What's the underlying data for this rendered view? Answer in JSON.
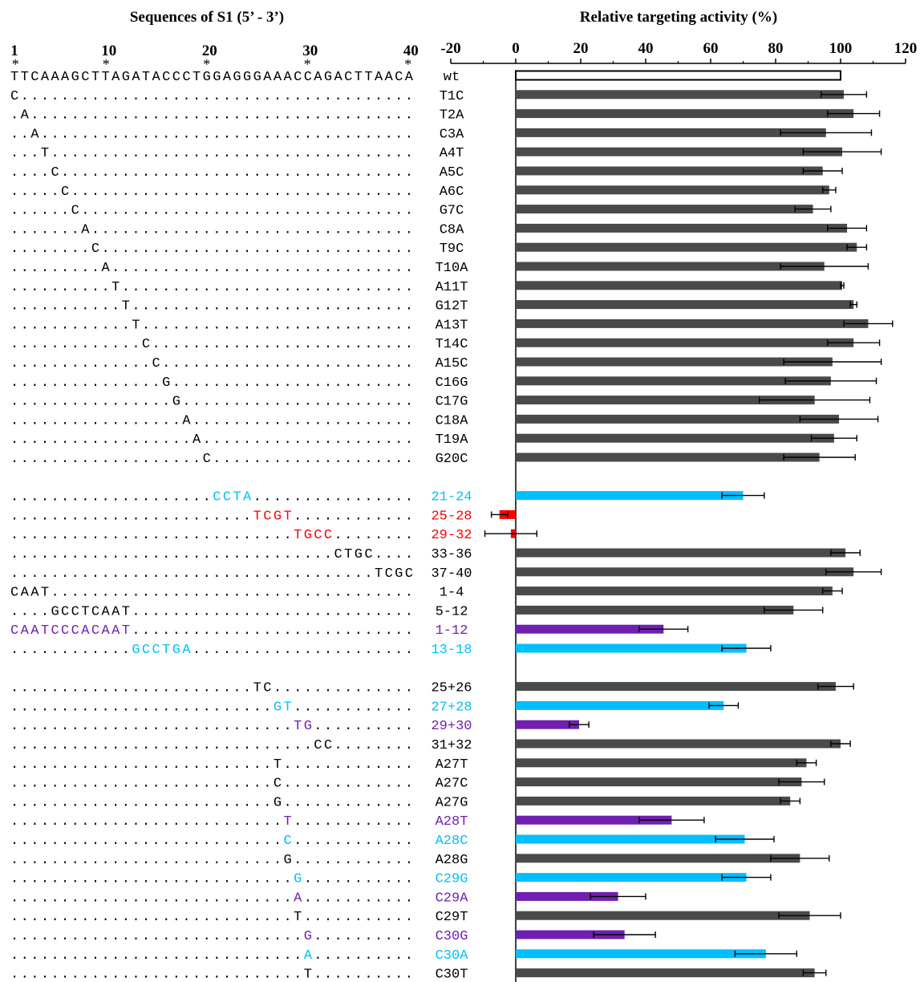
{
  "chart_data": {
    "type": "bar",
    "orientation": "horizontal",
    "left_title": "Sequences of S1 (5’ - 3’)",
    "title": "Relative targeting activity (%)",
    "position_labels": [
      "1",
      "10",
      "20",
      "30",
      "40"
    ],
    "position_stars": [
      "*",
      "*",
      "*",
      "*",
      "*"
    ],
    "xlim": [
      -20,
      120
    ],
    "xticks": [
      "-20",
      "0",
      "20",
      "40",
      "60",
      "80",
      "100",
      "120"
    ],
    "colors": {
      "gray": "#4a4a4a",
      "cyan": "#00bfff",
      "red": "#ff0000",
      "purple": "#7020b0",
      "black": "#000000",
      "wt_fill": "#ffffff"
    },
    "rows": [
      {
        "label": "wt",
        "seq": "TTCAAAGCTTAGATACCCTGGAGGGAAACCAGACTTAACA",
        "value": 100,
        "err": 0,
        "color": "wt_fill",
        "text_color": "black"
      },
      {
        "label": "T1C",
        "seq": "C.......................................",
        "value": 101,
        "err": 7,
        "color": "gray",
        "text_color": "black"
      },
      {
        "label": "T2A",
        "seq": ".A......................................",
        "value": 104,
        "err": 8,
        "color": "gray",
        "text_color": "black"
      },
      {
        "label": "C3A",
        "seq": "..A.....................................",
        "value": 95.5,
        "err": 14,
        "color": "gray",
        "text_color": "black"
      },
      {
        "label": "A4T",
        "seq": "...T....................................",
        "value": 100.5,
        "err": 12,
        "color": "gray",
        "text_color": "black"
      },
      {
        "label": "A5C",
        "seq": "....C...................................",
        "value": 94.5,
        "err": 6,
        "color": "gray",
        "text_color": "black"
      },
      {
        "label": "A6C",
        "seq": ".....C..................................",
        "value": 96.5,
        "err": 2,
        "color": "gray",
        "text_color": "black"
      },
      {
        "label": "G7C",
        "seq": "......C.................................",
        "value": 91.5,
        "err": 5.5,
        "color": "gray",
        "text_color": "black"
      },
      {
        "label": "C8A",
        "seq": ".......A................................",
        "value": 102,
        "err": 6,
        "color": "gray",
        "text_color": "black"
      },
      {
        "label": "T9C",
        "seq": "........C...............................",
        "value": 105,
        "err": 3,
        "color": "gray",
        "text_color": "black"
      },
      {
        "label": "T10A",
        "seq": ".........A..............................",
        "value": 95,
        "err": 13.5,
        "color": "gray",
        "text_color": "black"
      },
      {
        "label": "A11T",
        "seq": "..........T.............................",
        "value": 100.5,
        "err": 0.5,
        "color": "gray",
        "text_color": "black"
      },
      {
        "label": "G12T",
        "seq": "...........T............................",
        "value": 104,
        "err": 1,
        "color": "gray",
        "text_color": "black"
      },
      {
        "label": "A13T",
        "seq": "............T...........................",
        "value": 108.5,
        "err": 7.5,
        "color": "gray",
        "text_color": "black"
      },
      {
        "label": "T14C",
        "seq": ".............C..........................",
        "value": 104,
        "err": 8,
        "color": "gray",
        "text_color": "black"
      },
      {
        "label": "A15C",
        "seq": "..............C.........................",
        "value": 97.5,
        "err": 15,
        "color": "gray",
        "text_color": "black"
      },
      {
        "label": "C16G",
        "seq": "...............G........................",
        "value": 97,
        "err": 14,
        "color": "gray",
        "text_color": "black"
      },
      {
        "label": "C17G",
        "seq": "................G.......................",
        "value": 92,
        "err": 17,
        "color": "gray",
        "text_color": "black"
      },
      {
        "label": "C18A",
        "seq": ".................A......................",
        "value": 99.5,
        "err": 12,
        "color": "gray",
        "text_color": "black"
      },
      {
        "label": "T19A",
        "seq": "..................A.....................",
        "value": 98,
        "err": 7,
        "color": "gray",
        "text_color": "black"
      },
      {
        "label": "G20C",
        "seq": "...................C....................",
        "value": 93.5,
        "err": 11,
        "color": "gray",
        "text_color": "black"
      },
      {
        "gap": true
      },
      {
        "label": "21-24",
        "seq": "....................CCTA................",
        "value": 70,
        "err": 6.5,
        "color": "cyan",
        "text_color": "cyan"
      },
      {
        "label": "25-28",
        "seq": "........................TCGT............",
        "value": -5,
        "err": 2.5,
        "color": "red",
        "text_color": "red"
      },
      {
        "label": "29-32",
        "seq": "............................TGCC........",
        "value": -1.5,
        "err": 8,
        "color": "red",
        "text_color": "red"
      },
      {
        "label": "33-36",
        "seq": "................................CTGC....",
        "value": 101.5,
        "err": 4.5,
        "color": "gray",
        "text_color": "black"
      },
      {
        "label": "37-40",
        "seq": "....................................TCGC",
        "value": 104,
        "err": 8.5,
        "color": "gray",
        "text_color": "black"
      },
      {
        "label": "1-4",
        "seq": "CAAT....................................",
        "value": 97.5,
        "err": 3,
        "color": "gray",
        "text_color": "black"
      },
      {
        "label": "5-12",
        "seq": "....GCCTCAAT............................",
        "value": 85.5,
        "err": 9,
        "color": "gray",
        "text_color": "black"
      },
      {
        "label": "1-12",
        "seq": "CAATCCCACAAT............................",
        "value": 45.5,
        "err": 7.5,
        "color": "purple",
        "text_color": "purple"
      },
      {
        "label": "13-18",
        "seq": "............GCCTGA......................",
        "value": 71,
        "err": 7.5,
        "color": "cyan",
        "text_color": "cyan"
      },
      {
        "gap": true
      },
      {
        "label": "25+26",
        "seq": "........................TC..............",
        "value": 98.5,
        "err": 5.5,
        "color": "gray",
        "text_color": "black"
      },
      {
        "label": "27+28",
        "seq": "..........................GT............",
        "value": 64,
        "err": 4.5,
        "color": "cyan",
        "text_color": "cyan"
      },
      {
        "label": "29+30",
        "seq": "............................TG..........",
        "value": 19.5,
        "err": 3,
        "color": "purple",
        "text_color": "purple"
      },
      {
        "label": "31+32",
        "seq": "..............................CC........",
        "value": 100,
        "err": 3,
        "color": "gray",
        "text_color": "black"
      },
      {
        "label": "A27T",
        "seq": "..........................T.............",
        "value": 89.5,
        "err": 3,
        "color": "gray",
        "text_color": "black"
      },
      {
        "label": "A27C",
        "seq": "..........................C.............",
        "value": 88,
        "err": 7,
        "color": "gray",
        "text_color": "black"
      },
      {
        "label": "A27G",
        "seq": "..........................G.............",
        "value": 84.5,
        "err": 3,
        "color": "gray",
        "text_color": "black"
      },
      {
        "label": "A28T",
        "seq": "...........................T............",
        "value": 48,
        "err": 10,
        "color": "purple",
        "text_color": "purple"
      },
      {
        "label": "A28C",
        "seq": "...........................C............",
        "value": 70.5,
        "err": 9,
        "color": "cyan",
        "text_color": "cyan"
      },
      {
        "label": "A28G",
        "seq": "...........................G............",
        "value": 87.5,
        "err": 9,
        "color": "gray",
        "text_color": "black"
      },
      {
        "label": "C29G",
        "seq": "............................G...........",
        "value": 71,
        "err": 7.5,
        "color": "cyan",
        "text_color": "cyan"
      },
      {
        "label": "C29A",
        "seq": "............................A...........",
        "value": 31.5,
        "err": 8.5,
        "color": "purple",
        "text_color": "purple"
      },
      {
        "label": "C29T",
        "seq": "............................T...........",
        "value": 90.5,
        "err": 9.5,
        "color": "gray",
        "text_color": "black"
      },
      {
        "label": "C30G",
        "seq": ".............................G..........",
        "value": 33.5,
        "err": 9.5,
        "color": "purple",
        "text_color": "purple"
      },
      {
        "label": "C30A",
        "seq": ".............................A..........",
        "value": 77,
        "err": 9.5,
        "color": "cyan",
        "text_color": "cyan"
      },
      {
        "label": "C30T",
        "seq": ".............................T..........",
        "value": 92,
        "err": 3.5,
        "color": "gray",
        "text_color": "black"
      }
    ]
  }
}
